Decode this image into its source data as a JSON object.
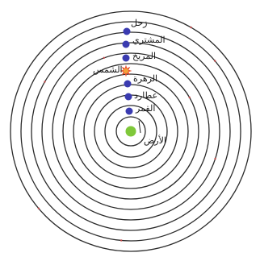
{
  "diagram": {
    "bodies": [
      {
        "key": "earth",
        "label": "الأرض",
        "kind": "earth"
      },
      {
        "key": "moon",
        "label": "القمر",
        "kind": "planet"
      },
      {
        "key": "mercury",
        "label": "عطارد",
        "kind": "planet"
      },
      {
        "key": "venus",
        "label": "الزهرة",
        "kind": "planet"
      },
      {
        "key": "sun",
        "label": "الشمس",
        "kind": "sun"
      },
      {
        "key": "mars",
        "label": "المريخ",
        "kind": "planet"
      },
      {
        "key": "jupiter",
        "label": "المشتري",
        "kind": "planet"
      },
      {
        "key": "saturn",
        "label": "زحل",
        "kind": "planet"
      }
    ],
    "colors": {
      "planet": "#3a3bb0",
      "sun": "#e84a2a",
      "earth": "#7fc83a",
      "orbit": "#2b2b2b"
    }
  }
}
